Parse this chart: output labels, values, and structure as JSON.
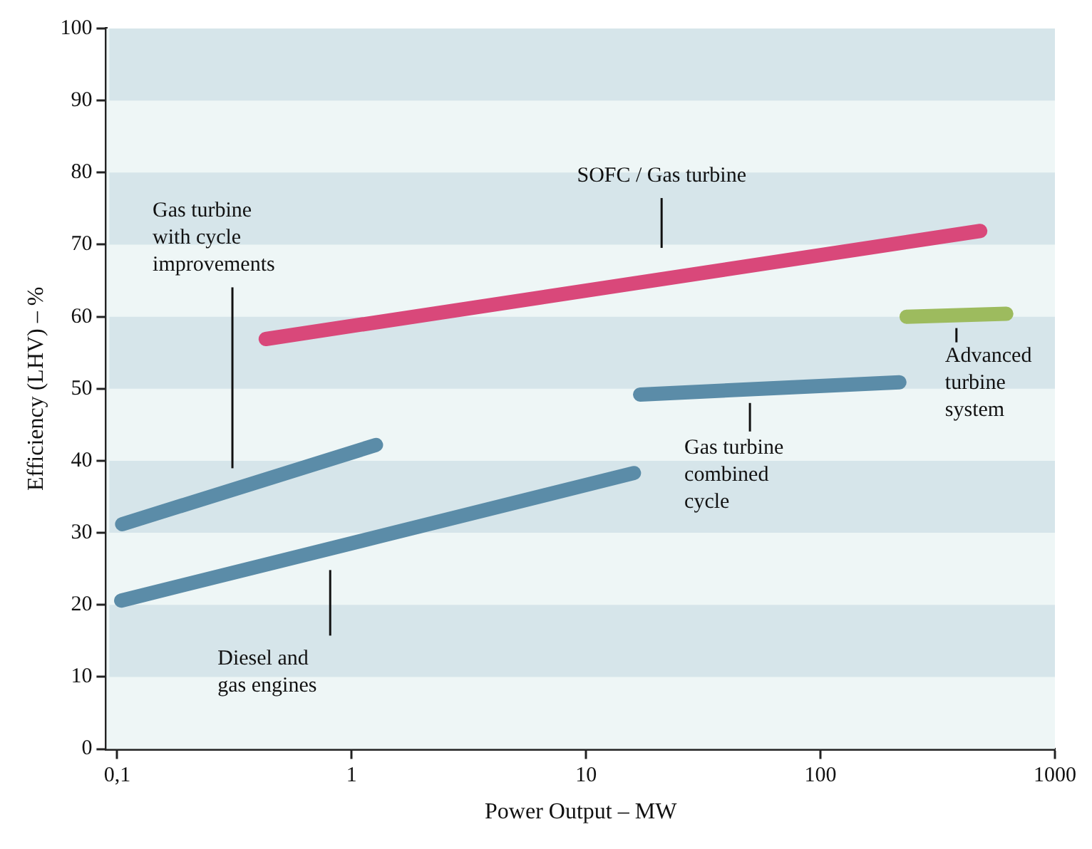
{
  "chart_data": {
    "type": "line",
    "xlabel": "Power Output – MW",
    "ylabel": "Efficiency (LHV) – %",
    "log": "x",
    "xlim": [
      0.09,
      1000
    ],
    "xticks": [
      {
        "value": 0.1,
        "label": "0,1"
      },
      1,
      10,
      100,
      1000
    ],
    "ylim": [
      0,
      100
    ],
    "yticks": [
      0,
      10,
      20,
      30,
      40,
      50,
      60,
      70,
      80,
      90,
      100
    ],
    "grid": false,
    "legend": false,
    "marker": "none",
    "line_style": "solid",
    "bands": [
      {
        "axis": "y",
        "from": 10,
        "to": 20,
        "color": "#d6e5ea"
      },
      {
        "axis": "y",
        "from": 30,
        "to": 40,
        "color": "#d6e5ea"
      },
      {
        "axis": "y",
        "from": 50,
        "to": 60,
        "color": "#d6e5ea"
      },
      {
        "axis": "y",
        "from": 70,
        "to": 80,
        "color": "#d6e5ea"
      },
      {
        "axis": "y",
        "from": 90,
        "to": 100,
        "color": "#d6e5ea"
      }
    ],
    "series": [
      {
        "name": "SOFC / Gas turbine",
        "color": "#d9487a",
        "x": [
          0.43,
          480
        ],
        "values": [
          56.9,
          71.9
        ]
      },
      {
        "name": "Gas turbine\nwith cycle\nimprovements",
        "color": "#5b8ca8",
        "x": [
          0.105,
          1.27
        ],
        "values": [
          31.2,
          42.2
        ]
      },
      {
        "name": "Diesel and\ngas engines",
        "color": "#5b8ca8",
        "x": [
          0.104,
          16
        ],
        "values": [
          20.6,
          38.3
        ]
      },
      {
        "name": "Gas turbine\ncombined\ncycle",
        "color": "#5b8ca8",
        "x": [
          17,
          217
        ],
        "values": [
          49.2,
          50.9
        ]
      },
      {
        "name": "Advanced\nturbine\nsystem",
        "color": "#9dbb5e",
        "x": [
          233,
          620
        ],
        "values": [
          60,
          60.4
        ]
      }
    ]
  }
}
